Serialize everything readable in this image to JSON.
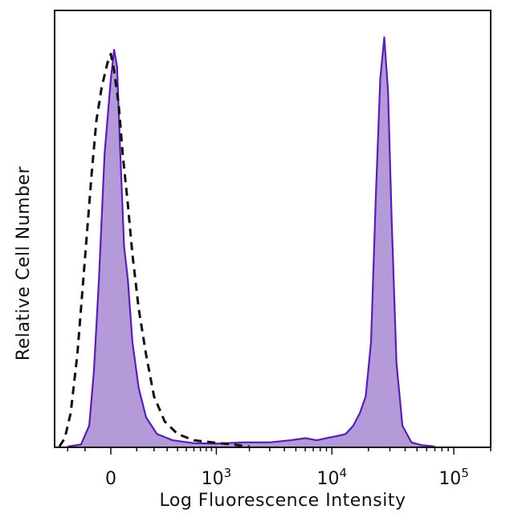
{
  "chart_data": {
    "type": "area",
    "xlabel": "Log Fluorescence Intensity",
    "ylabel": "Relative Cell Number",
    "x_scale": "biexponential",
    "xlim": [
      -300,
      200000
    ],
    "ylim": [
      0,
      100
    ],
    "grid": false,
    "x_ticks": [
      {
        "value": 0,
        "base": "0",
        "exp": ""
      },
      {
        "value": 1000,
        "base": "10",
        "exp": "3"
      },
      {
        "value": 10000,
        "base": "10",
        "exp": "4"
      },
      {
        "value": 100000,
        "base": "10",
        "exp": "5"
      }
    ],
    "series": [
      {
        "style": "filled",
        "fill_color": "#b49ad8",
        "line_color": "#5a1fb0",
        "x": [
          -200,
          -120,
          -80,
          -60,
          -40,
          -20,
          0,
          10,
          20,
          30,
          45,
          60,
          80,
          110,
          150,
          220,
          350,
          600,
          1000,
          1800,
          3000,
          4500,
          6000,
          7500,
          9000,
          11000,
          13000,
          15000,
          17000,
          19000,
          21000,
          23000,
          25000,
          27000,
          29000,
          31000,
          34000,
          38000,
          45000,
          55000,
          70000
        ],
        "y": [
          0,
          0.5,
          5,
          18,
          40,
          70,
          88,
          95,
          91,
          72,
          48,
          40,
          25,
          14,
          7,
          3,
          1.5,
          0.8,
          0.7,
          1,
          1,
          1.5,
          2,
          1.5,
          2,
          2.5,
          3,
          5,
          8,
          12,
          25,
          60,
          88,
          98,
          85,
          55,
          20,
          5,
          1,
          0.3,
          0
        ]
      },
      {
        "style": "dashed",
        "line_color": "#111111",
        "x": [
          -260,
          -220,
          -180,
          -140,
          -100,
          -70,
          -50,
          -30,
          -10,
          0,
          10,
          25,
          40,
          60,
          80,
          110,
          150,
          200,
          280,
          400,
          600,
          900,
          1400,
          2000
        ],
        "y": [
          0,
          2,
          8,
          22,
          45,
          65,
          78,
          86,
          92,
          94,
          90,
          82,
          70,
          58,
          46,
          33,
          22,
          12,
          6,
          3,
          1.5,
          1,
          0.5,
          0
        ]
      }
    ]
  }
}
